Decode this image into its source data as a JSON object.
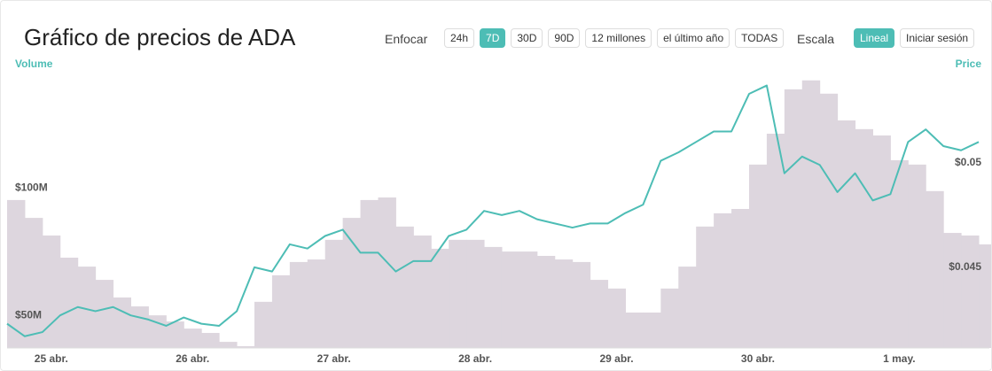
{
  "header": {
    "title": "Gráfico de precios de ADA",
    "zoom_label": "Enfocar",
    "zoom_buttons": [
      {
        "label": "24h",
        "active": false
      },
      {
        "label": "7D",
        "active": true
      },
      {
        "label": "30D",
        "active": false
      },
      {
        "label": "90D",
        "active": false
      },
      {
        "label": "12 millones",
        "active": false
      },
      {
        "label": "el último año",
        "active": false
      },
      {
        "label": "TODAS",
        "active": false
      }
    ],
    "scale_label": "Escala",
    "scale_buttons": [
      {
        "label": "Lineal",
        "active": true
      },
      {
        "label": "Iniciar sesión",
        "active": false
      }
    ]
  },
  "chart_data": {
    "type": "bar-line",
    "xlim": [
      0,
      55.6
    ],
    "xticks": [
      {
        "value": 2.5,
        "label": "25 abr."
      },
      {
        "value": 10.5,
        "label": "26 abr."
      },
      {
        "value": 18.5,
        "label": "27 abr."
      },
      {
        "value": 26.5,
        "label": "28 abr."
      },
      {
        "value": 34.5,
        "label": "29 abr."
      },
      {
        "value": 42.5,
        "label": "30 abr."
      },
      {
        "value": 50.5,
        "label": "1 may."
      }
    ],
    "ylim": [
      37.2,
      145.5
    ],
    "yticks": [
      {
        "value": 50,
        "label": "$50M"
      },
      {
        "value": 100,
        "label": "$100M"
      }
    ],
    "y2lim": [
      0.04114,
      0.05436
    ],
    "y2ticks": [
      {
        "value": 0.045,
        "label": "$0.045"
      },
      {
        "value": 0.05,
        "label": "$0.05"
      }
    ],
    "series": [
      {
        "name": "Volume",
        "type": "bar",
        "color": "#ddd6de",
        "values": [
          95.2,
          88.2,
          81.3,
          72.6,
          69.1,
          63.9,
          57.0,
          53.5,
          50.0,
          47.6,
          44.8,
          43.1,
          39.6,
          37.9,
          55.3,
          65.7,
          70.9,
          71.9,
          79.6,
          88.2,
          95.2,
          96.2,
          84.8,
          81.3,
          76.1,
          79.6,
          79.6,
          76.8,
          75.0,
          75.0,
          73.3,
          71.9,
          70.9,
          63.9,
          60.5,
          51.1,
          51.1,
          60.5,
          69.1,
          84.8,
          90.0,
          91.7,
          109.1,
          121.2,
          138.6,
          142.1,
          136.9,
          126.4,
          123.0,
          120.5,
          110.8,
          109.1,
          98.7,
          82.3,
          81.3,
          77.8
        ]
      },
      {
        "name": "Price",
        "type": "line",
        "axis": "y2",
        "color": "#4dbdb5",
        "values": [
          0.0423,
          0.0417,
          0.0419,
          0.0427,
          0.0431,
          0.0429,
          0.0431,
          0.0427,
          0.0425,
          0.0422,
          0.0426,
          0.0423,
          0.0422,
          0.0429,
          0.045,
          0.0448,
          0.0461,
          0.0459,
          0.0465,
          0.0468,
          0.0457,
          0.0457,
          0.0448,
          0.0453,
          0.0453,
          0.0465,
          0.0468,
          0.0477,
          0.0475,
          0.0477,
          0.0473,
          0.0471,
          0.0469,
          0.0471,
          0.0471,
          0.0476,
          0.048,
          0.0501,
          0.0505,
          0.051,
          0.0515,
          0.0515,
          0.0533,
          0.0537,
          0.0495,
          0.0503,
          0.0499,
          0.0486,
          0.0495,
          0.0482,
          0.0485,
          0.051,
          0.0516,
          0.0508,
          0.0506,
          0.051
        ]
      }
    ]
  }
}
